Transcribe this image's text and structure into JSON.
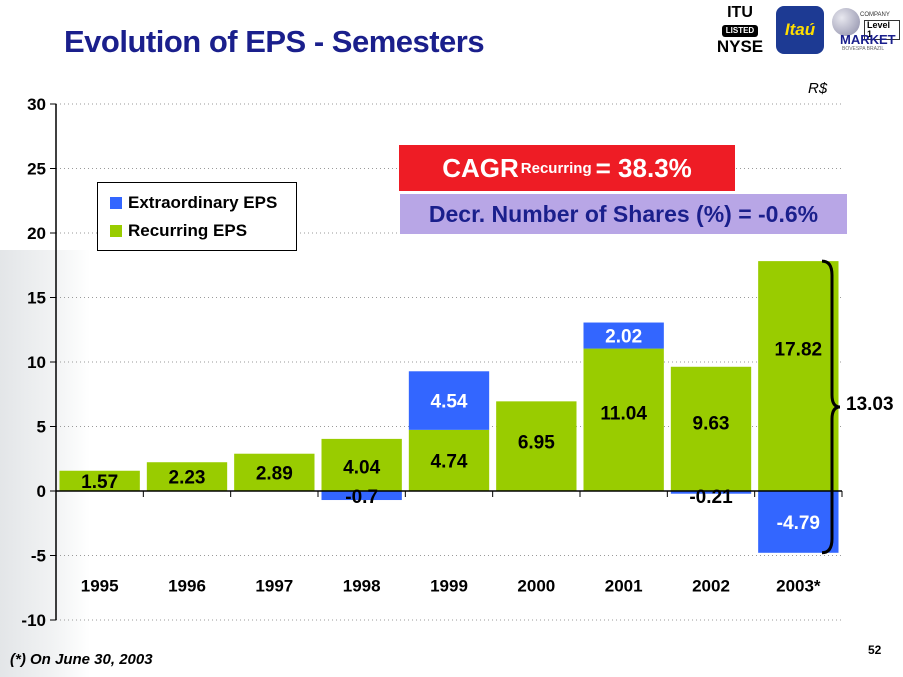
{
  "title": "Evolution of EPS - Semesters",
  "unit": "R$",
  "logos": {
    "itu_top": "ITU",
    "itu_listed": "LISTED",
    "itu_nyse": "NYSE",
    "itau": "Itaú",
    "market_company": "COMPANY",
    "market_level": "Level 1",
    "market_name": "MARKET",
    "market_bovespa": "BOVESPA BRAZIL"
  },
  "callouts": {
    "cagr_prefix": "CAGR",
    "cagr_sub": "Recurring",
    "cagr_suffix": "= 38.3%",
    "shares": "Decr. Number of Shares (%) = -0.6%"
  },
  "brace_value": "13.03",
  "footnote": "(*) On June 30, 2003",
  "page_number": "52",
  "colors": {
    "recurring": "#99cc00",
    "extraordinary": "#3366ff",
    "title": "#1a1f8c"
  },
  "chart_data": {
    "type": "bar",
    "stacked": true,
    "categories": [
      "1995",
      "1996",
      "1997",
      "1998",
      "1999",
      "2000",
      "2001",
      "2002",
      "2003*"
    ],
    "series": [
      {
        "name": "Recurring EPS",
        "values": [
          1.57,
          2.23,
          2.89,
          4.04,
          4.74,
          6.95,
          11.04,
          9.63,
          17.82
        ],
        "labels": [
          "1.57",
          "2.23",
          "2.89",
          "4.04",
          "4.74",
          "6.95",
          "11.04",
          "9.63",
          "17.82"
        ]
      },
      {
        "name": "Extraordinary EPS",
        "values": [
          0,
          0,
          0,
          -0.7,
          4.54,
          0,
          2.02,
          -0.21,
          -4.79
        ],
        "labels": [
          "",
          "",
          "",
          "-0.7",
          "4.54",
          "",
          "2.02",
          "-0.21",
          "-4.79"
        ]
      }
    ],
    "yticks": [
      "30",
      "25",
      "20",
      "15",
      "10",
      "5",
      "0",
      "-5",
      "-10"
    ],
    "ylim": [
      -10,
      30
    ],
    "grid": true,
    "legend": "top-left"
  }
}
